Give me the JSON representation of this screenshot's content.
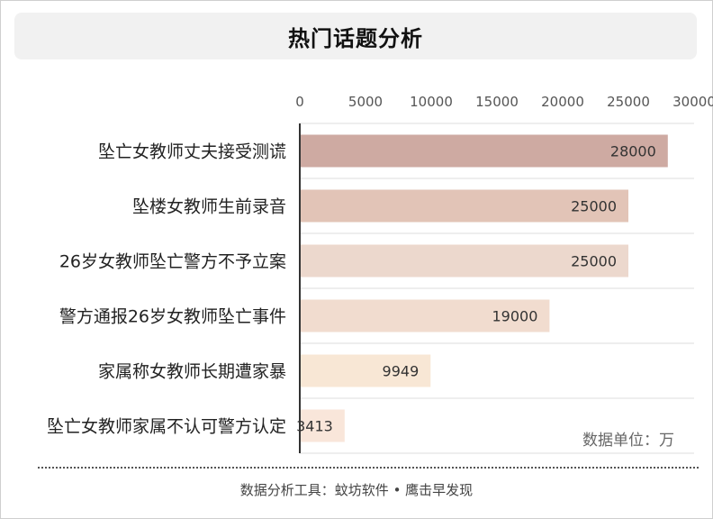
{
  "title": "热门话题分析",
  "footer": "数据分析工具：蚊坊软件 • 鹰击早发现",
  "chart_data": {
    "type": "bar",
    "orientation": "horizontal",
    "title": "热门话题分析",
    "xlabel": "",
    "ylabel": "",
    "unit_note": "数据单位：万",
    "xlim": [
      0,
      30000
    ],
    "ticks": [
      0,
      5000,
      10000,
      15000,
      20000,
      25000,
      30000
    ],
    "tick_labels": [
      "0",
      "5000",
      "10000",
      "15000",
      "20000",
      "25000",
      "30000"
    ],
    "categories": [
      "坠亡女教师丈夫接受测谎",
      "坠楼女教师生前录音",
      "26岁女教师坠亡警方不予立案",
      "警方通报26岁女教师坠亡事件",
      "家属称女教师长期遭家暴",
      "坠亡女教师家属不认可警方认定"
    ],
    "values": [
      28000,
      25000,
      25000,
      19000,
      9949,
      3413
    ],
    "value_labels": [
      "28000",
      "25000",
      "25000",
      "19000",
      "9949",
      "3413"
    ],
    "colors": [
      "#ceaaa2",
      "#e2c4b7",
      "#ecd8cd",
      "#f1dccf",
      "#f8e7d5",
      "#f9e6da"
    ],
    "grid": true,
    "axis_position": "top"
  }
}
